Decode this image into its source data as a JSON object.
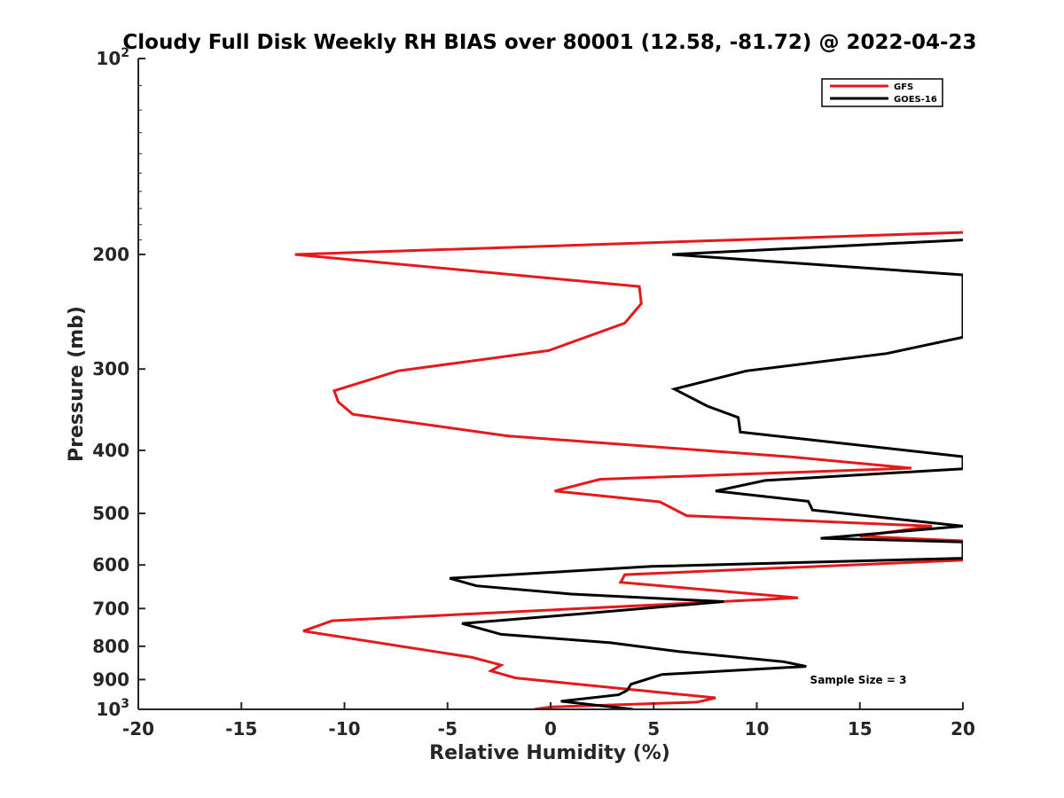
{
  "chart_data": {
    "type": "line",
    "title": "Cloudy Full Disk Weekly RH BIAS over 80001 (12.58, -81.72) @ 2022-04-23",
    "xlabel": "Relative Humidity (%)",
    "ylabel": "Pressure (mb)",
    "xlim": [
      -20,
      20
    ],
    "ylim": [
      100,
      1000
    ],
    "y_scale": "log",
    "y_reversed": true,
    "grid": false,
    "legend_position": "top-right",
    "x_ticks": [
      -20,
      -15,
      -10,
      -5,
      0,
      5,
      10,
      15,
      20
    ],
    "y_ticks": [
      {
        "value": 100,
        "label": "10",
        "sup": "2"
      },
      {
        "value": 200,
        "label": "200",
        "sup": ""
      },
      {
        "value": 300,
        "label": "300",
        "sup": ""
      },
      {
        "value": 400,
        "label": "400",
        "sup": ""
      },
      {
        "value": 500,
        "label": "500",
        "sup": ""
      },
      {
        "value": 600,
        "label": "600",
        "sup": ""
      },
      {
        "value": 700,
        "label": "700",
        "sup": ""
      },
      {
        "value": 800,
        "label": "800",
        "sup": ""
      },
      {
        "value": 900,
        "label": "900",
        "sup": ""
      },
      {
        "value": 1000,
        "label": "10",
        "sup": "3"
      }
    ],
    "series": [
      {
        "name": "GFS",
        "color": "#e6191a",
        "points": [
          [
            20.0,
            185
          ],
          [
            -12.4,
            200
          ],
          [
            4.3,
            224
          ],
          [
            4.4,
            238
          ],
          [
            3.6,
            255
          ],
          [
            -0.1,
            281
          ],
          [
            -7.4,
            302
          ],
          [
            -10.5,
            324
          ],
          [
            -10.3,
            337
          ],
          [
            -9.6,
            352
          ],
          [
            -2.1,
            380
          ],
          [
            11.5,
            409
          ],
          [
            17.5,
            426
          ],
          [
            2.4,
            443
          ],
          [
            0.2,
            462
          ],
          [
            5.3,
            480
          ],
          [
            6.6,
            504
          ],
          [
            18.5,
            523
          ],
          [
            15.0,
            542
          ],
          [
            20.0,
            551
          ],
          [
            20.0,
            590
          ],
          [
            3.6,
            621
          ],
          [
            3.4,
            638
          ],
          [
            12.0,
            674
          ],
          [
            -10.6,
            731
          ],
          [
            -12.0,
            758
          ],
          [
            -3.8,
            832
          ],
          [
            -2.4,
            855
          ],
          [
            -2.9,
            873
          ],
          [
            -1.7,
            895
          ],
          [
            5.9,
            946
          ],
          [
            8.0,
            960
          ],
          [
            7.1,
            975
          ],
          [
            0.0,
            992
          ],
          [
            -0.8,
            1000
          ]
        ]
      },
      {
        "name": "GOES-16",
        "color": "#000000",
        "points": [
          [
            20.0,
            190
          ],
          [
            5.9,
            200
          ],
          [
            20.0,
            215
          ],
          [
            20.0,
            268
          ],
          [
            16.3,
            284
          ],
          [
            9.5,
            302
          ],
          [
            6.0,
            322
          ],
          [
            7.6,
            342
          ],
          [
            9.1,
            356
          ],
          [
            9.2,
            375
          ],
          [
            20.0,
            409
          ],
          [
            20.0,
            427
          ],
          [
            10.4,
            445
          ],
          [
            8.0,
            462
          ],
          [
            12.5,
            479
          ],
          [
            12.7,
            494
          ],
          [
            20.0,
            523
          ],
          [
            13.1,
            546
          ],
          [
            20.0,
            553
          ],
          [
            20.0,
            586
          ],
          [
            4.9,
            603
          ],
          [
            -4.9,
            629
          ],
          [
            -3.6,
            646
          ],
          [
            1.0,
            665
          ],
          [
            8.4,
            683
          ],
          [
            1.3,
            714
          ],
          [
            -4.3,
            738
          ],
          [
            -2.4,
            767
          ],
          [
            2.9,
            790
          ],
          [
            6.2,
            815
          ],
          [
            11.3,
            845
          ],
          [
            12.4,
            859
          ],
          [
            5.4,
            884
          ],
          [
            3.9,
            915
          ],
          [
            3.7,
            936
          ],
          [
            3.3,
            950
          ],
          [
            0.5,
            972
          ],
          [
            4.0,
            1000
          ]
        ]
      }
    ],
    "annotation": "Sample Size = 3"
  }
}
